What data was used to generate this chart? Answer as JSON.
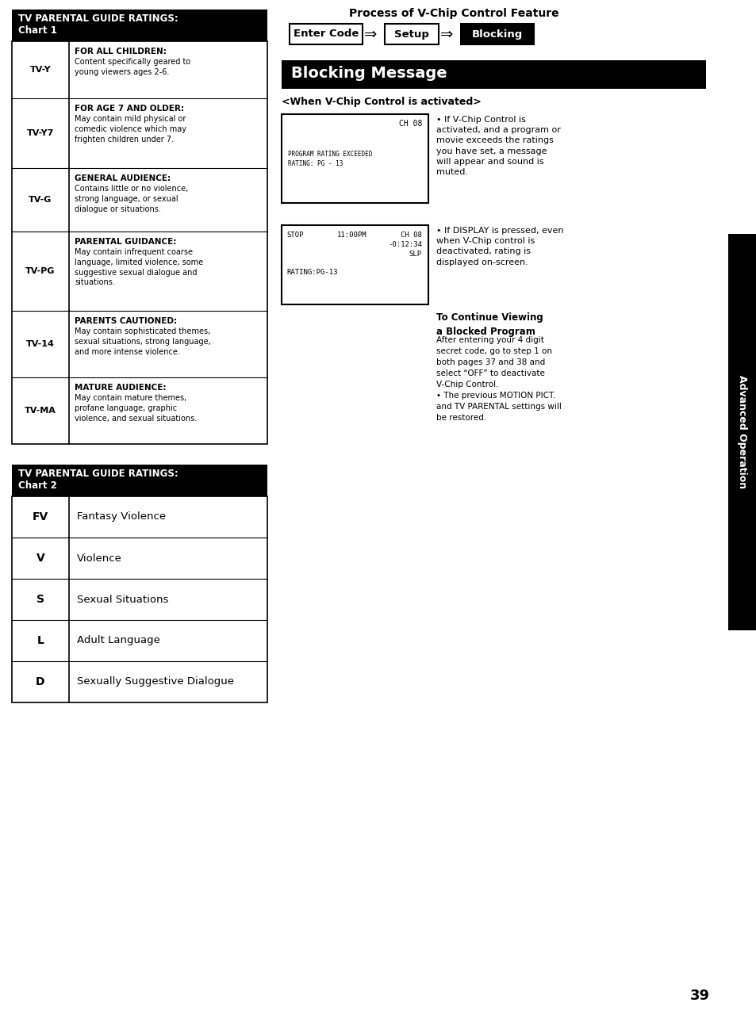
{
  "bg_color": "#ffffff",
  "chart1_ratings": [
    {
      "code": "TV-Y",
      "title": "FOR ALL CHILDREN:",
      "desc": "Content specifically geared to\nyoung viewers ages 2-6."
    },
    {
      "code": "TV-Y7",
      "title": "FOR AGE 7 AND OLDER:",
      "desc": "May contain mild physical or\ncomedic violence which may\nfrighten children under 7."
    },
    {
      "code": "TV-G",
      "title": "GENERAL AUDIENCE:",
      "desc": "Contains little or no violence,\nstrong language, or sexual\ndialogue or situations."
    },
    {
      "code": "TV-PG",
      "title": "PARENTAL GUIDANCE:",
      "desc": "May contain infrequent coarse\nlanguage, limited violence, some\nsuggestive sexual dialogue and\nsituations."
    },
    {
      "code": "TV-14",
      "title": "PARENTS CAUTIONED:",
      "desc": "May contain sophisticated themes,\nsexual situations, strong language,\nand more intense violence."
    },
    {
      "code": "TV-MA",
      "title": "MATURE AUDIENCE:",
      "desc": "May contain mature themes,\nprofane language, graphic\nviolence, and sexual situations."
    }
  ],
  "chart2_ratings": [
    {
      "code": "FV",
      "desc": "Fantasy Violence"
    },
    {
      "code": "V",
      "desc": "Violence"
    },
    {
      "code": "S",
      "desc": "Sexual Situations"
    },
    {
      "code": "L",
      "desc": "Adult Language"
    },
    {
      "code": "D",
      "desc": "Sexually Suggestive Dialogue"
    }
  ],
  "process_title": "Process of V-Chip Control Feature",
  "process_steps": [
    "Enter Code",
    "Setup",
    "Blocking"
  ],
  "blocking_msg_header": "Blocking Message",
  "when_activated": "<When V-Chip Control is activated>",
  "bullet1": "If V-Chip Control is\nactivated, and a program or\nmovie exceeds the ratings\nyou have set, a message\nwill appear and sound is\nmuted.",
  "bullet2": "If DISPLAY is pressed, even\nwhen V-Chip control is\ndeactivated, rating is\ndisplayed on-screen.",
  "continue_title": "To Continue Viewing\na Blocked Program",
  "continue_body": "After entering your 4 digit\nsecret code, go to step 1 on\nboth pages 37 and 38 and\nselect “OFF” to deactivate\nV-Chip Control.\n• The previous MOTION PICT.\nand TV PARENTAL settings will\nbe restored.",
  "sidebar_text": "Advanced Operation",
  "page_number": "39"
}
